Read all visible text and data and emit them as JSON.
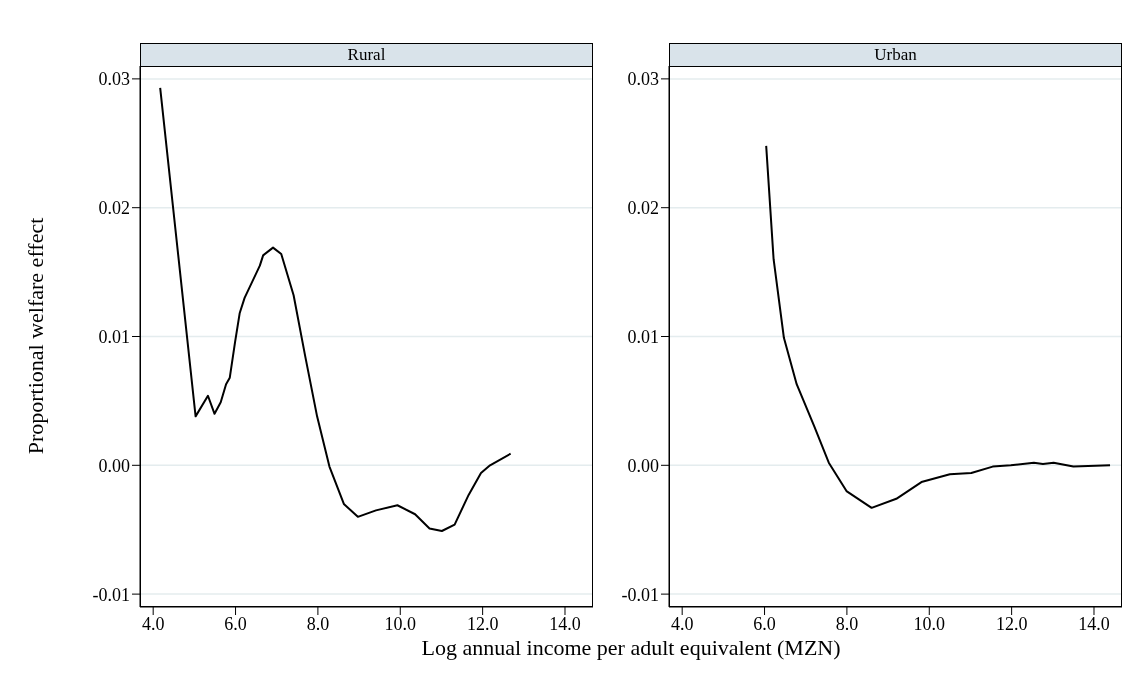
{
  "chart_data": [
    {
      "type": "line",
      "title": "Rural",
      "ylabel": "Proportional welfare effect",
      "xlabel": "Log annual income per adult equivalent (MZN)",
      "grid": "y",
      "x": [
        4.17,
        5.03,
        5.33,
        5.49,
        5.64,
        5.77,
        5.86,
        5.99,
        6.1,
        6.22,
        6.59,
        6.67,
        6.91,
        7.11,
        7.41,
        7.69,
        7.98,
        8.28,
        8.63,
        8.97,
        9.41,
        9.93,
        10.36,
        10.71,
        11.01,
        11.32,
        11.66,
        11.96,
        12.18,
        12.68
      ],
      "series": [
        {
          "color": "#000000",
          "values": [
            0.0293,
            0.0038,
            0.0054,
            0.004,
            0.0049,
            0.0063,
            0.0068,
            0.0096,
            0.0118,
            0.013,
            0.0155,
            0.0163,
            0.0169,
            0.0164,
            0.0132,
            0.0085,
            0.0038,
            -0.0001,
            -0.003,
            -0.004,
            -0.0035,
            -0.0031,
            -0.0038,
            -0.0049,
            -0.0051,
            -0.0046,
            -0.0023,
            -0.0006,
            0.0,
            0.0009
          ]
        }
      ],
      "xlim": [
        3.68,
        14.68
      ],
      "xticks": [
        {
          "value": 4,
          "label": "4.0"
        },
        {
          "value": 6,
          "label": "6.0"
        },
        {
          "value": 8,
          "label": "8.0"
        },
        {
          "value": 10,
          "label": "10.0"
        },
        {
          "value": 12,
          "label": "12.0"
        },
        {
          "value": 14,
          "label": "14.0"
        }
      ],
      "ylim": [
        -0.011,
        0.031
      ],
      "yticks": [
        {
          "value": -0.01,
          "label": "-0.01"
        },
        {
          "value": 0,
          "label": "0.00"
        },
        {
          "value": 0.01,
          "label": "0.01"
        },
        {
          "value": 0.02,
          "label": "0.02"
        },
        {
          "value": 0.03,
          "label": "0.03"
        }
      ]
    },
    {
      "type": "line",
      "title": "Urban",
      "grid": "y",
      "x": [
        6.04,
        6.22,
        6.47,
        6.78,
        7.21,
        7.56,
        7.99,
        8.6,
        9.2,
        9.81,
        10.5,
        11.02,
        11.54,
        11.98,
        12.54,
        12.76,
        13.02,
        13.5,
        14.39
      ],
      "series": [
        {
          "color": "#000000",
          "values": [
            0.0248,
            0.016,
            0.0099,
            0.0063,
            0.003,
            0.0002,
            -0.002,
            -0.0033,
            -0.0026,
            -0.0013,
            -0.0007,
            -0.0006,
            -0.0001,
            0.0,
            0.0002,
            0.0001,
            0.0002,
            -0.0001,
            0.0
          ]
        }
      ],
      "xlim": [
        3.68,
        14.68
      ],
      "xticks": [
        {
          "value": 4,
          "label": "4.0"
        },
        {
          "value": 6,
          "label": "6.0"
        },
        {
          "value": 8,
          "label": "8.0"
        },
        {
          "value": 10,
          "label": "10.0"
        },
        {
          "value": 12,
          "label": "12.0"
        },
        {
          "value": 14,
          "label": "14.0"
        }
      ],
      "ylim": [
        -0.011,
        0.031
      ],
      "yticks": [
        {
          "value": -0.01,
          "label": "-0.01"
        },
        {
          "value": 0,
          "label": "0.00"
        },
        {
          "value": 0.01,
          "label": "0.01"
        },
        {
          "value": 0.02,
          "label": "0.02"
        },
        {
          "value": 0.03,
          "label": "0.03"
        }
      ]
    }
  ]
}
